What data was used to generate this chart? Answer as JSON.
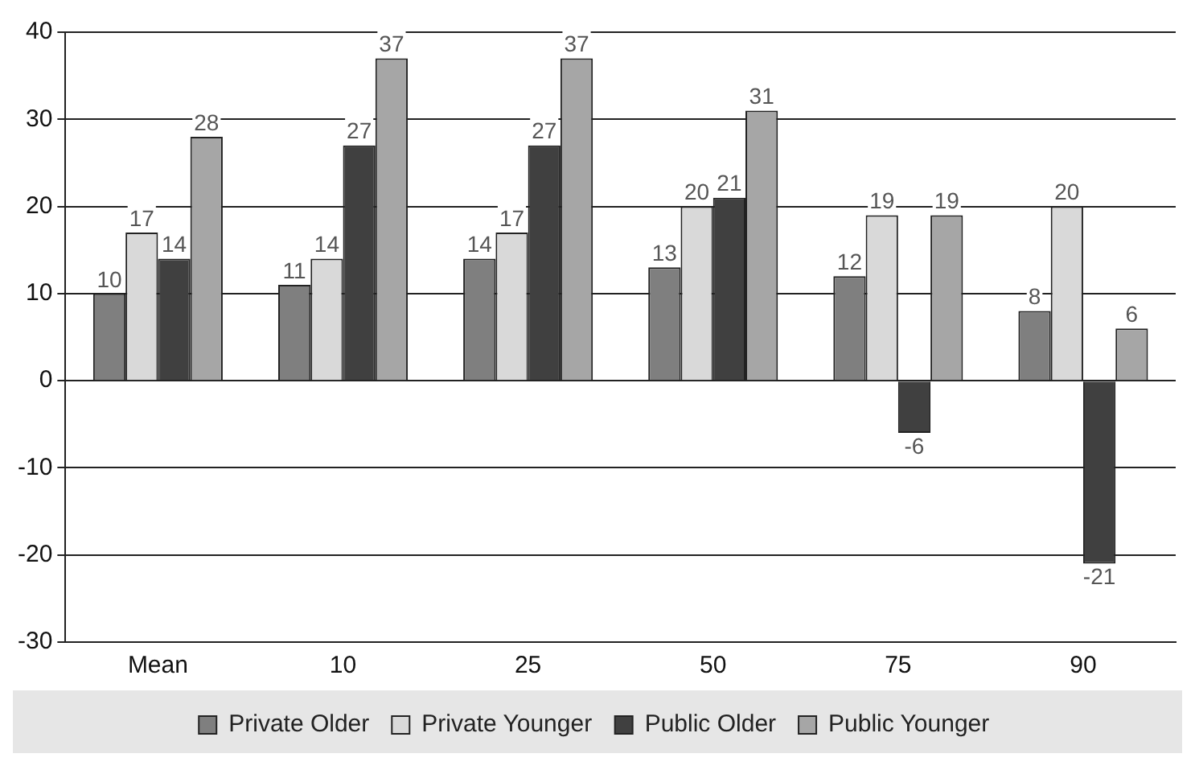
{
  "chart_data": {
    "type": "bar",
    "categories": [
      "Mean",
      "10",
      "25",
      "50",
      "75",
      "90"
    ],
    "series": [
      {
        "name": "Private Older",
        "color": "#7f7f7f",
        "values": [
          10,
          11,
          14,
          13,
          12,
          8
        ]
      },
      {
        "name": "Private Younger",
        "color": "#d9d9d9",
        "values": [
          17,
          14,
          17,
          20,
          19,
          20
        ]
      },
      {
        "name": "Public Older",
        "color": "#404040",
        "values": [
          14,
          27,
          27,
          21,
          -6,
          -21
        ]
      },
      {
        "name": "Public Younger",
        "color": "#a6a6a6",
        "values": [
          28,
          37,
          37,
          31,
          19,
          6
        ]
      }
    ],
    "ylim": [
      -30,
      40
    ],
    "yticks": [
      -30,
      -20,
      -10,
      0,
      10,
      20,
      30,
      40
    ],
    "grid": "y",
    "legend": "bottom",
    "data_labels": true
  }
}
